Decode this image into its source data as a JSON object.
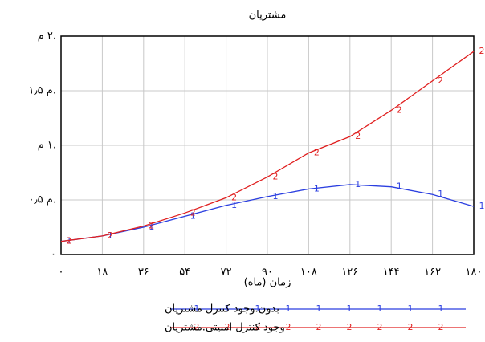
{
  "chart_data": {
    "type": "line",
    "title": "مشتریان",
    "x_label": "زمان (ماه)",
    "x": [
      0,
      18,
      36,
      54,
      72,
      90,
      108,
      126,
      144,
      162,
      180
    ],
    "series": [
      {
        "name": "بدون.وجود کنترل مشتریان",
        "color": "#2b3fe0",
        "marker": "1",
        "values": [
          0.12,
          0.17,
          0.25,
          0.35,
          0.45,
          0.53,
          0.6,
          0.64,
          0.62,
          0.55,
          0.44
        ]
      },
      {
        "name": "وجود کنترل امنیتی.مشتریان",
        "color": "#e02020",
        "marker": "2",
        "values": [
          0.12,
          0.17,
          0.26,
          0.38,
          0.52,
          0.71,
          0.93,
          1.08,
          1.32,
          1.59,
          1.86
        ]
      }
    ],
    "xlim": [
      0,
      180
    ],
    "xticks": [
      {
        "value": 0,
        "label": "٠"
      },
      {
        "value": 18,
        "label": "١٨"
      },
      {
        "value": 36,
        "label": "٣۶"
      },
      {
        "value": 54,
        "label": "۵۴"
      },
      {
        "value": 72,
        "label": "٧٢"
      },
      {
        "value": 90,
        "label": "٩٠"
      },
      {
        "value": 108,
        "label": "١٠٨"
      },
      {
        "value": 126,
        "label": "١٢۶"
      },
      {
        "value": 144,
        "label": "١۴۴"
      },
      {
        "value": 162,
        "label": "١۶٢"
      },
      {
        "value": 180,
        "label": "١٨٠"
      }
    ],
    "ylim": [
      0,
      2
    ],
    "yticks": [
      {
        "value": 0,
        "label": "٠"
      },
      {
        "value": 0.5,
        "label": "٠٫۵ م."
      },
      {
        "value": 1,
        "label": "١ م."
      },
      {
        "value": 1.5,
        "label": "١٫۵ م."
      },
      {
        "value": 2,
        "label": "٢ م."
      }
    ],
    "grid": true
  }
}
